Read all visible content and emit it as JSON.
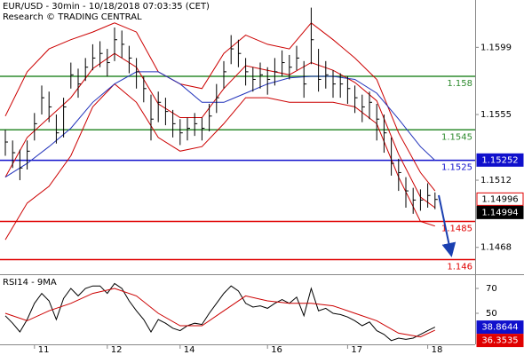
{
  "header": {
    "title": "EUR/USD - 30min - 10/18/2018 07:03:35 (CET)",
    "subtitle": "Research © TRADING CENTRAL"
  },
  "chart_data": [
    {
      "type": "ohlc",
      "categories": [
        null,
        null,
        null,
        null,
        "11",
        null,
        null,
        null,
        null,
        null,
        null,
        null,
        null,
        null,
        "12",
        null,
        null,
        null,
        null,
        null,
        null,
        null,
        null,
        null,
        "14",
        null,
        null,
        null,
        null,
        null,
        null,
        null,
        null,
        null,
        null,
        null,
        "16",
        null,
        null,
        null,
        null,
        null,
        null,
        null,
        null,
        null,
        null,
        "17",
        null,
        null,
        null,
        null,
        null,
        null,
        null,
        null,
        null,
        null,
        "18",
        null
      ],
      "high": [
        1.1545,
        1.1538,
        1.1532,
        1.1538,
        1.1556,
        1.1574,
        1.157,
        1.1555,
        1.1566,
        1.1589,
        1.1585,
        1.1592,
        1.1601,
        1.1603,
        1.1598,
        1.1612,
        1.161,
        1.16,
        1.1592,
        1.158,
        1.1568,
        1.157,
        1.1566,
        1.1558,
        1.1552,
        1.1553,
        1.1556,
        1.1553,
        1.1562,
        1.1575,
        1.159,
        1.1607,
        1.1604,
        1.1592,
        1.1586,
        1.1589,
        1.1586,
        1.1592,
        1.1597,
        1.1594,
        1.16,
        1.159,
        1.1625,
        1.1598,
        1.159,
        1.1584,
        1.1582,
        1.158,
        1.1574,
        1.1568,
        1.157,
        1.1562,
        1.1555,
        1.154,
        1.1526,
        1.1514,
        1.1507,
        1.1506,
        1.151,
        1.1504
      ],
      "low": [
        1.1528,
        1.152,
        1.1512,
        1.1519,
        1.1538,
        1.1555,
        1.155,
        1.1536,
        1.154,
        1.1572,
        1.1566,
        1.1577,
        1.1584,
        1.1586,
        1.158,
        1.159,
        1.1592,
        1.1582,
        1.1572,
        1.1563,
        1.1538,
        1.155,
        1.1548,
        1.154,
        1.1535,
        1.1538,
        1.1541,
        1.1538,
        1.1544,
        1.1556,
        1.1572,
        1.1588,
        1.1586,
        1.1574,
        1.157,
        1.1572,
        1.1568,
        1.1574,
        1.158,
        1.1578,
        1.1584,
        1.1566,
        1.1588,
        1.157,
        1.1572,
        1.1566,
        1.1566,
        1.1562,
        1.1556,
        1.155,
        1.1552,
        1.1538,
        1.153,
        1.1515,
        1.1505,
        1.1494,
        1.149,
        1.1492,
        1.1494,
        1.1493
      ],
      "close": [
        1.1537,
        1.153,
        1.152,
        1.1531,
        1.1549,
        1.1566,
        1.156,
        1.1543,
        1.156,
        1.1581,
        1.1575,
        1.1586,
        1.1592,
        1.1595,
        1.1589,
        1.1604,
        1.1601,
        1.1592,
        1.1583,
        1.1572,
        1.1552,
        1.1563,
        1.1557,
        1.1549,
        1.1543,
        1.1546,
        1.1549,
        1.1546,
        1.1554,
        1.1566,
        1.1583,
        1.1598,
        1.1595,
        1.1583,
        1.1578,
        1.1581,
        1.1578,
        1.1583,
        1.1589,
        1.1586,
        1.1592,
        1.1575,
        1.1604,
        1.1578,
        1.1581,
        1.1575,
        1.1575,
        1.1572,
        1.1566,
        1.156,
        1.1563,
        1.1552,
        1.1543,
        1.1523,
        1.1517,
        1.1505,
        1.1499,
        1.1499,
        1.1502,
        1.14994
      ],
      "color": "#000000",
      "overlays": [
        {
          "color": "#cc0000",
          "x": [
            0,
            3,
            6,
            9,
            12,
            15,
            18,
            21,
            24,
            27,
            30,
            33,
            36,
            39,
            42,
            45,
            48,
            51,
            54,
            57,
            59
          ],
          "values": [
            1.1554,
            1.1583,
            1.1598,
            1.1604,
            1.1609,
            1.1615,
            1.1609,
            1.1583,
            1.1575,
            1.1572,
            1.1595,
            1.1607,
            1.1601,
            1.1598,
            1.1615,
            1.1604,
            1.1592,
            1.1578,
            1.1543,
            1.1517,
            1.1505
          ]
        },
        {
          "color": "#cc0000",
          "x": [
            0,
            3,
            6,
            9,
            12,
            15,
            18,
            21,
            24,
            27,
            30,
            33,
            36,
            39,
            42,
            45,
            48,
            51,
            54,
            57,
            59
          ],
          "values": [
            1.1514,
            1.154,
            1.1553,
            1.1566,
            1.1585,
            1.1595,
            1.1586,
            1.1562,
            1.1553,
            1.1553,
            1.1572,
            1.1587,
            1.1584,
            1.1581,
            1.1589,
            1.1584,
            1.1576,
            1.1564,
            1.1529,
            1.1501,
            1.1494
          ]
        },
        {
          "color": "#cc0000",
          "x": [
            0,
            3,
            6,
            9,
            12,
            15,
            18,
            21,
            24,
            27,
            30,
            33,
            36,
            39,
            42,
            45,
            48,
            51,
            54,
            57,
            59
          ],
          "values": [
            1.1473,
            1.1497,
            1.1508,
            1.1528,
            1.156,
            1.1575,
            1.1563,
            1.154,
            1.1531,
            1.1534,
            1.1549,
            1.1566,
            1.1566,
            1.1563,
            1.1563,
            1.1563,
            1.156,
            1.1549,
            1.1514,
            1.1485,
            1.1482
          ]
        },
        {
          "color": "#2233bb",
          "x": [
            0,
            3,
            6,
            9,
            12,
            15,
            18,
            21,
            24,
            27,
            30,
            33,
            36,
            39,
            42,
            45,
            48,
            51,
            54,
            57,
            59
          ],
          "values": [
            1.1514,
            1.1523,
            1.1534,
            1.1546,
            1.1563,
            1.1575,
            1.1583,
            1.1583,
            1.1575,
            1.1563,
            1.1563,
            1.1569,
            1.1575,
            1.1579,
            1.158,
            1.158,
            1.1578,
            1.1569,
            1.1552,
            1.1534,
            1.1525
          ]
        }
      ],
      "levels": [
        {
          "value": 1.158,
          "color": "#2e8b2e"
        },
        {
          "value": 1.1545,
          "color": "#2e8b2e"
        },
        {
          "value": 1.1525,
          "color": "#1010cc"
        },
        {
          "value": 1.1485,
          "color": "#e00000"
        },
        {
          "value": 1.146,
          "color": "#e00000"
        }
      ],
      "price_tags": [
        {
          "value": 1.15252,
          "fill": "#1010cc",
          "border": "#1010cc",
          "text_color": "#ffffff"
        },
        {
          "value": 1.14996,
          "fill": "#ffffff",
          "border": "#e00000",
          "text_color": "#000000"
        },
        {
          "value": 1.14994,
          "fill": "#000000",
          "border": "#000000",
          "text_color": "#ffffff"
        }
      ],
      "ylim": [
        1.1451,
        1.163
      ],
      "yticks": [
        1.1468,
        1.1512,
        1.1555,
        1.1599
      ]
    },
    {
      "type": "line",
      "title": "RSI14 - 9MA",
      "series": [
        {
          "color": "#000000",
          "x": [
            0,
            1,
            2,
            3,
            4,
            5,
            6,
            7,
            8,
            9,
            10,
            11,
            12,
            13,
            14,
            15,
            16,
            17,
            18,
            19,
            20,
            21,
            22,
            23,
            24,
            25,
            26,
            27,
            28,
            29,
            30,
            31,
            32,
            33,
            34,
            35,
            36,
            37,
            38,
            39,
            40,
            41,
            42,
            43,
            44,
            45,
            46,
            47,
            48,
            49,
            50,
            51,
            52,
            53,
            54,
            55,
            56,
            57,
            58,
            59
          ],
          "values": [
            48,
            42,
            35,
            45,
            58,
            66,
            60,
            45,
            62,
            70,
            64,
            70,
            72,
            72,
            66,
            74,
            70,
            60,
            52,
            45,
            35,
            45,
            42,
            38,
            36,
            40,
            42,
            41,
            50,
            58,
            66,
            72,
            68,
            58,
            55,
            56,
            54,
            58,
            61,
            58,
            63,
            48,
            70,
            52,
            54,
            50,
            49,
            47,
            44,
            40,
            43,
            36,
            33,
            28,
            30,
            29,
            30,
            33,
            36,
            38.8644
          ]
        },
        {
          "color": "#cc0000",
          "x": [
            0,
            3,
            6,
            9,
            12,
            15,
            18,
            21,
            24,
            27,
            30,
            33,
            36,
            39,
            42,
            45,
            48,
            51,
            54,
            57,
            59
          ],
          "values": [
            50,
            44,
            52,
            58,
            66,
            70,
            64,
            50,
            40,
            40,
            52,
            64,
            60,
            58,
            58,
            56,
            50,
            44,
            34,
            31,
            36.3535
          ]
        }
      ],
      "value_tags": [
        {
          "value": 38.8644,
          "fill": "#1010cc",
          "text_color": "#ffffff"
        },
        {
          "value": 36.3535,
          "fill": "#e00000",
          "text_color": "#ffffff"
        }
      ],
      "ylim": [
        25,
        80.7
      ],
      "yticks": [
        70,
        50
      ]
    }
  ]
}
